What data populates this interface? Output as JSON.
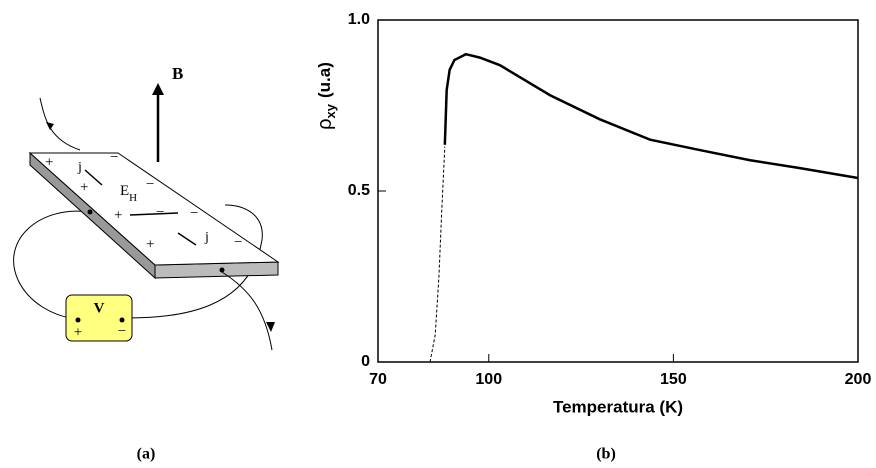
{
  "diagram": {
    "field_label": "B",
    "current_labels": [
      "j",
      "j"
    ],
    "field_E": {
      "symbol": "E",
      "subscript": "H"
    },
    "voltmeter": {
      "label": "V",
      "plus": "+",
      "minus": "−"
    },
    "plus_charges": [
      "+",
      "+",
      "+",
      "+"
    ],
    "minus_charges": [
      "−",
      "−",
      "−",
      "−",
      "−"
    ],
    "panel_label": "(a)"
  },
  "chart_data": {
    "type": "line",
    "panel_label": "(b)",
    "xlabel": "Temperatura (K)",
    "ylabel": {
      "symbol": "ρ",
      "subscript": "xy",
      "unit": "(u.a)"
    },
    "xlim": [
      70,
      200
    ],
    "xticks": [
      70,
      100,
      150,
      200
    ],
    "ylim": [
      0,
      1
    ],
    "yticks": [
      0,
      0.5,
      {
        "value": 1,
        "label": "1.0"
      }
    ],
    "series": [
      {
        "color": "#000000",
        "dash": true,
        "x": [
          84.1,
          85.5,
          86.5,
          87.3,
          88.1
        ],
        "values": [
          0,
          0.08,
          0.25,
          0.45,
          0.63
        ]
      },
      {
        "color": "#000000",
        "dash": false,
        "x": [
          88.1,
          88.6,
          89.4,
          90.7,
          93.8,
          97.6,
          103,
          116.6,
          130,
          143.7,
          157,
          170.8,
          184.3,
          200
        ],
        "values": [
          0.635,
          0.795,
          0.854,
          0.883,
          0.9,
          0.89,
          0.868,
          0.78,
          0.71,
          0.65,
          0.62,
          0.59,
          0.567,
          0.538
        ]
      }
    ]
  }
}
